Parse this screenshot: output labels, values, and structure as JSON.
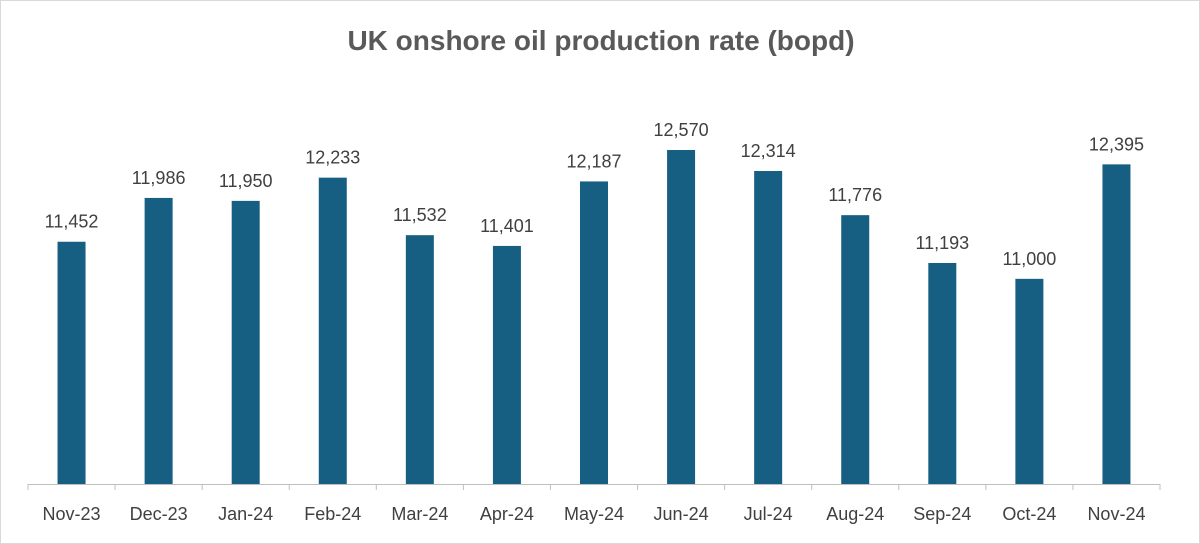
{
  "chart_data": {
    "type": "bar",
    "title": "UK onshore oil production rate (bopd)",
    "xlabel": "",
    "ylabel": "",
    "categories": [
      "Nov-23",
      "Dec-23",
      "Jan-24",
      "Feb-24",
      "Mar-24",
      "Apr-24",
      "May-24",
      "Jun-24",
      "Jul-24",
      "Aug-24",
      "Sep-24",
      "Oct-24",
      "Nov-24"
    ],
    "values": [
      11452,
      11986,
      11950,
      12233,
      11532,
      11401,
      12187,
      12570,
      12314,
      11776,
      11193,
      11000,
      12395
    ],
    "value_labels": [
      "11,452",
      "11,986",
      "11,950",
      "12,233",
      "11,532",
      "11,401",
      "12,187",
      "12,570",
      "12,314",
      "11,776",
      "11,193",
      "11,000",
      "12,395"
    ],
    "ylim": [
      8500,
      12570
    ],
    "grid": false,
    "legend": "none",
    "bar_color": "#175f82"
  }
}
